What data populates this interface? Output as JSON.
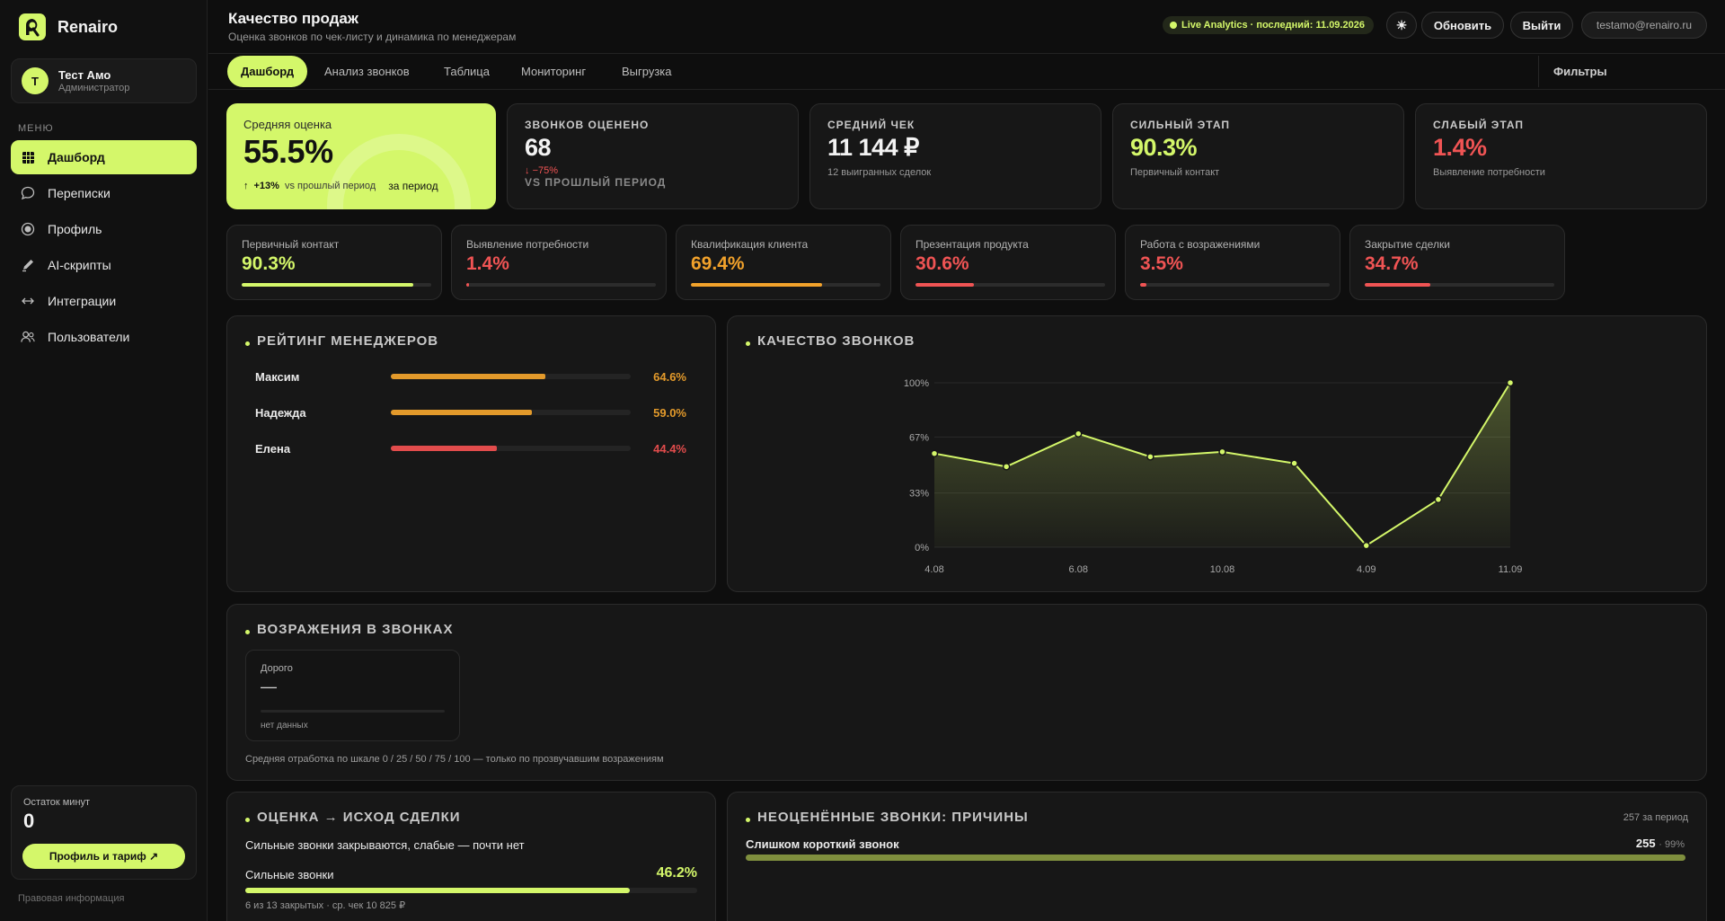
{
  "sidebar": {
    "brand": "Renairo",
    "user": {
      "initial": "Т",
      "name": "Тест Амо",
      "role": "Администратор"
    },
    "menu_title": "МЕНЮ",
    "items": [
      {
        "label": "Дашборд",
        "icon": "grid-icon"
      },
      {
        "label": "Переписки",
        "icon": "chat-icon"
      },
      {
        "label": "Профиль",
        "icon": "profile-icon"
      },
      {
        "label": "AI-скрипты",
        "icon": "pen-icon"
      },
      {
        "label": "Интеграции",
        "icon": "arrows-icon"
      },
      {
        "label": "Пользователи",
        "icon": "users-icon"
      }
    ],
    "minutes_label": "Остаток минут",
    "minutes_value": "0",
    "plan_button": "Профиль и тариф ↗",
    "legal": "Правовая информация"
  },
  "header": {
    "title": "Качество продаж",
    "subtitle": "Оценка звонков по чек-листу и динамика по менеджерам",
    "live": "Live Analytics · последний: 11.09.2026",
    "theme_icon": "☀",
    "refresh": "Обновить",
    "logout": "Выйти",
    "email": "testamo@renairo.ru"
  },
  "tabs": [
    "Дашборд",
    "Анализ звонков",
    "Таблица",
    "Мониторинг",
    "Выгрузка"
  ],
  "filters": "Фильтры",
  "kpis": {
    "avg_label": "Средняя оценка",
    "avg_value": "55.5%",
    "avg_trend": "+13%",
    "avg_trend_note": "vs прошлый период",
    "avg_period": "за период",
    "calls_label": "Звонков оценено",
    "calls_value": "68",
    "calls_trend": "−75%",
    "calls_trend_note": "vs прошлый период",
    "check_label": "Средний чек",
    "check_value": "11 144 ₽",
    "check_sub": "12 выигранных сделок",
    "strong_label": "Сильный этап",
    "strong_value": "90.3%",
    "strong_sub": "Первичный контакт",
    "weak_label": "Слабый этап",
    "weak_value": "1.4%",
    "weak_sub": "Выявление потребности"
  },
  "stages": [
    {
      "label": "Первичный контакт",
      "value": "90.3%",
      "fill": 0.903,
      "color": "#d4f76a"
    },
    {
      "label": "Выявление потребности",
      "value": "1.4%",
      "fill": 0.014,
      "color": "#f05454"
    },
    {
      "label": "Квалификация клиента",
      "value": "69.4%",
      "fill": 0.694,
      "color": "#f2a22b"
    },
    {
      "label": "Презентация продукта",
      "value": "30.6%",
      "fill": 0.306,
      "color": "#f05454"
    },
    {
      "label": "Работа с возражениями",
      "value": "3.5%",
      "fill": 0.035,
      "color": "#f05454"
    },
    {
      "label": "Закрытие сделки",
      "value": "34.7%",
      "fill": 0.347,
      "color": "#f05454"
    }
  ],
  "rating": {
    "title": "РЕЙТИНГ МЕНЕДЖЕРОВ",
    "rows": [
      {
        "name": "Максим",
        "value": "64.6%",
        "fill": 0.646,
        "color": "#e39a2b"
      },
      {
        "name": "Надежда",
        "value": "59.0%",
        "fill": 0.59,
        "color": "#e39a2b"
      },
      {
        "name": "Елена",
        "value": "44.4%",
        "fill": 0.444,
        "color": "#e24c4c"
      }
    ]
  },
  "quality": {
    "title": "КАЧЕСТВО ЗВОНКОВ"
  },
  "chart_data": {
    "type": "area",
    "x": [
      "4.08",
      "",
      "6.08",
      "",
      "10.08",
      "",
      "4.09",
      "",
      "11.09"
    ],
    "values": [
      57,
      49,
      69,
      55,
      58,
      51,
      1,
      29,
      100
    ],
    "y_ticks": [
      "100%",
      "67%",
      "33%",
      "0%"
    ],
    "x_ticks": [
      "4.08",
      "6.08",
      "10.08",
      "4.09",
      "11.09"
    ],
    "ylim": [
      0,
      100
    ],
    "grid": true,
    "color": "#d4f76a"
  },
  "objections": {
    "title": "ВОЗРАЖЕНИЯ В ЗВОНКАХ",
    "card_name": "Дорого",
    "card_value": "—",
    "card_note": "нет данных",
    "footer": "Средняя отработка по шкале 0 / 25 / 50 / 75 / 100 — только по прозвучавшим возражениям"
  },
  "outcome": {
    "title": "ОЦЕНКА → ИСХОД СДЕЛКИ",
    "subtitle": "Сильные звонки закрываются, слабые — почти нет",
    "row_label": "Сильные звонки",
    "row_value": "46.2%",
    "row_fill": 0.85,
    "row_note": "6 из 13 закрытых · ср. чек 10 825 ₽"
  },
  "unrated": {
    "title": "НЕОЦЕНЁННЫЕ ЗВОНКИ: ПРИЧИНЫ",
    "count_note": "257 за период",
    "reason": "Слишком короткий звонок",
    "reason_count": "255",
    "reason_pct": "· 99%"
  }
}
